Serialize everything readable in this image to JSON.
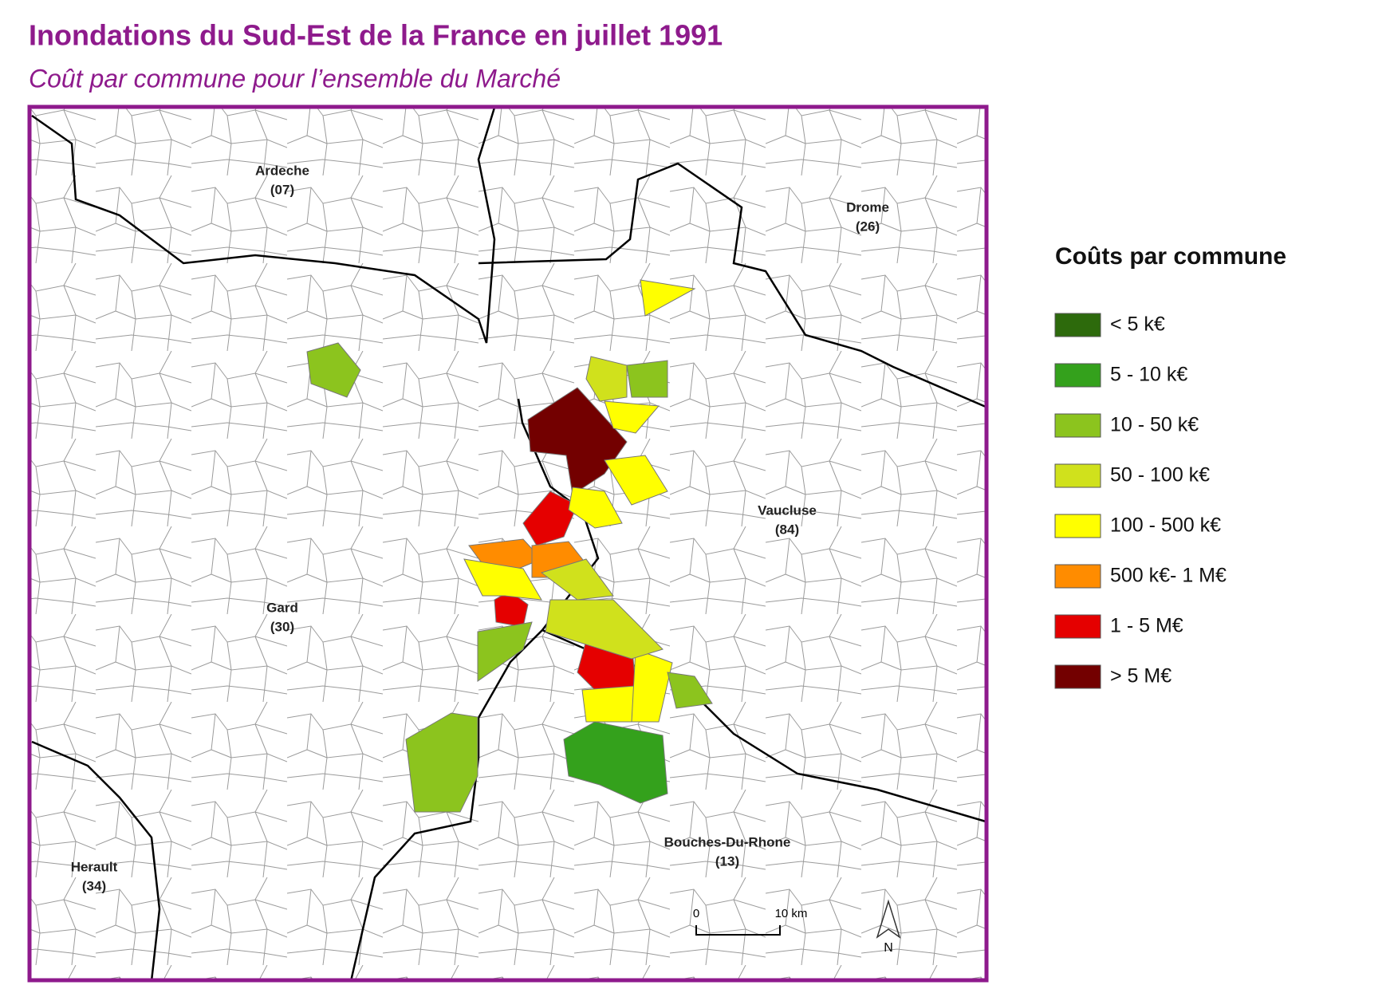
{
  "header": {
    "title": "Inondations du Sud-Est de la France en juillet 1991",
    "subtitle": "Coût par commune pour l’ensemble du Marché"
  },
  "map": {
    "departments": [
      {
        "name": "Ardeche",
        "code": "(07)"
      },
      {
        "name": "Drome",
        "code": "(26)"
      },
      {
        "name": "Vaucluse",
        "code": "(84)"
      },
      {
        "name": "Gard",
        "code": "(30)"
      },
      {
        "name": "Herault",
        "code": "(34)"
      },
      {
        "name": "Bouches-Du-Rhone",
        "code": "(13)"
      }
    ],
    "scale_bar": {
      "start": "0",
      "end": "10 km"
    },
    "north": "N"
  },
  "legend": {
    "title": "Coûts par commune",
    "items": [
      {
        "label": "< 5 k€",
        "color": "#2d6a0c"
      },
      {
        "label": "5 - 10 k€",
        "color": "#34a11c"
      },
      {
        "label": "10 - 50 k€",
        "color": "#8cc41e"
      },
      {
        "label": "50 - 100 k€",
        "color": "#d0e11c"
      },
      {
        "label": "100 - 500 k€",
        "color": "#ffff00"
      },
      {
        "label": "500 k€- 1 M€",
        "color": "#ff8c00"
      },
      {
        "label": "1 - 5 M€",
        "color": "#e50000"
      },
      {
        "label": "> 5 M€",
        "color": "#730000"
      }
    ]
  }
}
